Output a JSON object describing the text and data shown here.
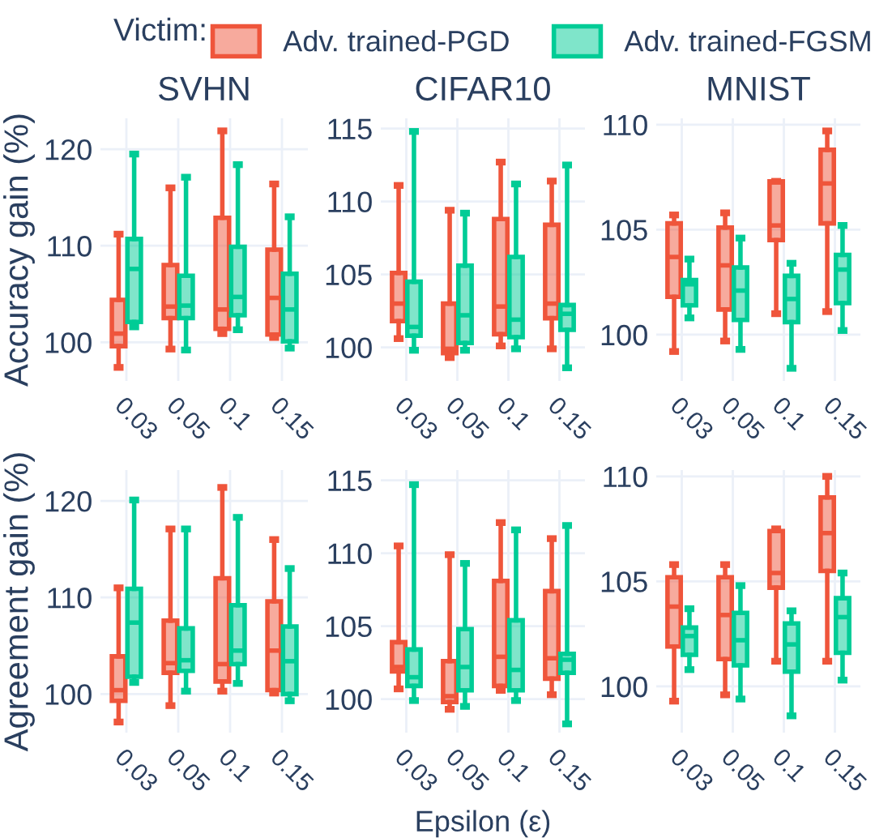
{
  "chart_data": [
    {
      "type": "box",
      "title": "SVHN",
      "ylabel": "Accuracy gain (%)",
      "legend_title": "Victim:",
      "legend": "top",
      "grid": true,
      "categories": [
        "0.03",
        "0.05",
        "0.1",
        "0.15"
      ],
      "ylim": [
        96,
        123.2
      ],
      "yticks": [
        100,
        110,
        120
      ],
      "series": [
        {
          "name": "Adv. trained-PGD",
          "color": "#ef553b",
          "boxes": [
            {
              "low": 97.4,
              "q1": 99.6,
              "median": 100.9,
              "q3": 104.4,
              "high": 111.2
            },
            {
              "low": 99.3,
              "q1": 102.5,
              "median": 103.7,
              "q3": 108.0,
              "high": 116.0
            },
            {
              "low": 100.9,
              "q1": 101.4,
              "median": 103.4,
              "q3": 112.9,
              "high": 121.9
            },
            {
              "low": 100.5,
              "q1": 100.8,
              "median": 104.6,
              "q3": 109.6,
              "high": 116.4
            }
          ]
        },
        {
          "name": "Adv. trained-FGSM",
          "color": "#00cc96",
          "boxes": [
            {
              "low": 101.6,
              "q1": 102.1,
              "median": 107.6,
              "q3": 110.7,
              "high": 119.5
            },
            {
              "low": 99.2,
              "q1": 102.5,
              "median": 103.8,
              "q3": 106.9,
              "high": 117.1
            },
            {
              "low": 101.3,
              "q1": 102.8,
              "median": 104.7,
              "q3": 109.9,
              "high": 118.4
            },
            {
              "low": 99.4,
              "q1": 100.1,
              "median": 103.4,
              "q3": 107.1,
              "high": 113.0
            }
          ]
        }
      ]
    },
    {
      "type": "box",
      "title": "CIFAR10",
      "grid": true,
      "categories": [
        "0.03",
        "0.05",
        "0.1",
        "0.15"
      ],
      "ylim": [
        97.7,
        115.7
      ],
      "yticks": [
        100,
        105,
        110,
        115
      ],
      "series": [
        {
          "color": "#ef553b",
          "boxes": [
            {
              "low": 100.6,
              "q1": 101.8,
              "median": 103.0,
              "q3": 105.1,
              "high": 111.1
            },
            {
              "low": 99.3,
              "q1": 99.6,
              "median": 99.9,
              "q3": 103.0,
              "high": 109.4
            },
            {
              "low": 100.1,
              "q1": 100.9,
              "median": 102.8,
              "q3": 108.8,
              "high": 112.7
            },
            {
              "low": 99.9,
              "q1": 102.0,
              "median": 103.0,
              "q3": 108.4,
              "high": 111.4
            }
          ]
        },
        {
          "color": "#00cc96",
          "boxes": [
            {
              "low": 99.8,
              "q1": 100.8,
              "median": 101.4,
              "q3": 104.5,
              "high": 114.8
            },
            {
              "low": 99.8,
              "q1": 100.3,
              "median": 102.2,
              "q3": 105.6,
              "high": 109.2
            },
            {
              "low": 99.9,
              "q1": 100.7,
              "median": 101.9,
              "q3": 106.2,
              "high": 111.2
            },
            {
              "low": 98.6,
              "q1": 101.2,
              "median": 102.3,
              "q3": 102.9,
              "high": 112.5
            }
          ]
        }
      ]
    },
    {
      "type": "box",
      "title": "MNIST",
      "grid": true,
      "categories": [
        "0.03",
        "0.05",
        "0.1",
        "0.15"
      ],
      "ylim": [
        97.8,
        110.3
      ],
      "yticks": [
        100,
        105,
        110
      ],
      "series": [
        {
          "color": "#ef553b",
          "boxes": [
            {
              "low": 99.2,
              "q1": 101.8,
              "median": 103.7,
              "q3": 105.3,
              "high": 105.7
            },
            {
              "low": 99.7,
              "q1": 101.2,
              "median": 103.3,
              "q3": 105.1,
              "high": 105.8
            },
            {
              "low": 101.0,
              "q1": 104.5,
              "median": 105.2,
              "q3": 107.3,
              "high": 107.3
            },
            {
              "low": 101.1,
              "q1": 105.3,
              "median": 107.2,
              "q3": 108.8,
              "high": 109.7
            }
          ]
        },
        {
          "color": "#00cc96",
          "boxes": [
            {
              "low": 100.8,
              "q1": 101.4,
              "median": 102.4,
              "q3": 102.6,
              "high": 103.6
            },
            {
              "low": 99.3,
              "q1": 100.7,
              "median": 102.1,
              "q3": 103.2,
              "high": 104.6
            },
            {
              "low": 98.4,
              "q1": 100.6,
              "median": 101.7,
              "q3": 102.8,
              "high": 103.4
            },
            {
              "low": 100.2,
              "q1": 101.5,
              "median": 103.1,
              "q3": 103.8,
              "high": 105.2
            }
          ]
        }
      ]
    },
    {
      "type": "box",
      "ylabel": "Agreement gain (%)",
      "grid": true,
      "categories": [
        "0.03",
        "0.05",
        "0.1",
        "0.15"
      ],
      "ylim": [
        96,
        123.2
      ],
      "yticks": [
        100,
        110,
        120
      ],
      "series": [
        {
          "color": "#ef553b",
          "boxes": [
            {
              "low": 97.1,
              "q1": 99.3,
              "median": 100.4,
              "q3": 103.9,
              "high": 111.0
            },
            {
              "low": 98.8,
              "q1": 102.2,
              "median": 103.2,
              "q3": 107.6,
              "high": 117.1
            },
            {
              "low": 100.3,
              "q1": 101.3,
              "median": 103.1,
              "q3": 112.0,
              "high": 121.4
            },
            {
              "low": 100.1,
              "q1": 100.4,
              "median": 104.5,
              "q3": 109.6,
              "high": 116.0
            }
          ]
        },
        {
          "color": "#00cc96",
          "boxes": [
            {
              "low": 101.2,
              "q1": 101.8,
              "median": 107.4,
              "q3": 110.9,
              "high": 120.1
            },
            {
              "low": 100.3,
              "q1": 102.4,
              "median": 103.5,
              "q3": 106.8,
              "high": 117.1
            },
            {
              "low": 101.1,
              "q1": 103.1,
              "median": 104.5,
              "q3": 109.2,
              "high": 118.3
            },
            {
              "low": 99.3,
              "q1": 100.0,
              "median": 103.4,
              "q3": 107.0,
              "high": 113.0
            }
          ]
        }
      ]
    },
    {
      "type": "box",
      "xlabel": "Epsilon (ε)",
      "grid": true,
      "categories": [
        "0.03",
        "0.05",
        "0.1",
        "0.15"
      ],
      "ylim": [
        97.7,
        115.7
      ],
      "yticks": [
        100,
        105,
        110,
        115
      ],
      "series": [
        {
          "color": "#ef553b",
          "boxes": [
            {
              "low": 100.7,
              "q1": 101.9,
              "median": 102.2,
              "q3": 103.9,
              "high": 110.5
            },
            {
              "low": 99.3,
              "q1": 99.8,
              "median": 100.2,
              "q3": 102.6,
              "high": 109.9
            },
            {
              "low": 100.6,
              "q1": 100.9,
              "median": 102.9,
              "q3": 108.1,
              "high": 112.1
            },
            {
              "low": 100.3,
              "q1": 101.4,
              "median": 102.8,
              "q3": 107.4,
              "high": 111.0
            }
          ]
        },
        {
          "color": "#00cc96",
          "boxes": [
            {
              "low": 99.9,
              "q1": 100.9,
              "median": 101.5,
              "q3": 103.4,
              "high": 114.7
            },
            {
              "low": 99.5,
              "q1": 100.6,
              "median": 102.2,
              "q3": 104.8,
              "high": 109.3
            },
            {
              "low": 99.9,
              "q1": 100.6,
              "median": 102.0,
              "q3": 105.4,
              "high": 111.6
            },
            {
              "low": 98.3,
              "q1": 101.8,
              "median": 102.7,
              "q3": 103.1,
              "high": 111.9
            }
          ]
        }
      ]
    },
    {
      "type": "box",
      "grid": true,
      "categories": [
        "0.03",
        "0.05",
        "0.1",
        "0.15"
      ],
      "ylim": [
        97.8,
        110.3
      ],
      "yticks": [
        100,
        105,
        110
      ],
      "series": [
        {
          "color": "#ef553b",
          "boxes": [
            {
              "low": 99.3,
              "q1": 101.9,
              "median": 103.8,
              "q3": 105.2,
              "high": 105.8
            },
            {
              "low": 99.6,
              "q1": 101.3,
              "median": 103.4,
              "q3": 105.2,
              "high": 105.8
            },
            {
              "low": 101.2,
              "q1": 104.7,
              "median": 105.4,
              "q3": 107.4,
              "high": 107.5
            },
            {
              "low": 101.2,
              "q1": 105.5,
              "median": 107.3,
              "q3": 109.0,
              "high": 110.0
            }
          ]
        },
        {
          "color": "#00cc96",
          "boxes": [
            {
              "low": 100.8,
              "q1": 101.5,
              "median": 102.4,
              "q3": 102.8,
              "high": 103.7
            },
            {
              "low": 99.4,
              "q1": 101.0,
              "median": 102.2,
              "q3": 103.5,
              "high": 104.8
            },
            {
              "low": 98.6,
              "q1": 100.7,
              "median": 102.0,
              "q3": 103.0,
              "high": 103.6
            },
            {
              "low": 100.3,
              "q1": 101.6,
              "median": 103.3,
              "q3": 104.2,
              "high": 105.4
            }
          ]
        }
      ]
    }
  ]
}
